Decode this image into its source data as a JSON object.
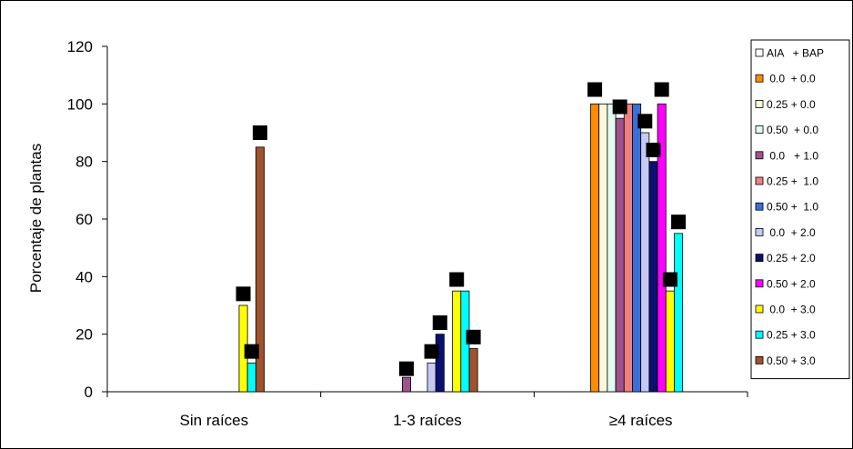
{
  "chart_data": {
    "type": "bar",
    "title": "",
    "xlabel": "",
    "ylabel": "Porcentaje de plantas",
    "ylim": [
      0,
      120
    ],
    "yticks": [
      "0",
      "20",
      "40",
      "60",
      "80",
      "100",
      "120"
    ],
    "categories": [
      "Sin raíces",
      "1-3 raíces",
      "≥4 raíces"
    ],
    "legend_header": "AIA   + BAP",
    "legend_position": "right",
    "series": [
      {
        "name": " 0.0  + 0.0",
        "color": "#ff8c00",
        "values": [
          0,
          0,
          100
        ]
      },
      {
        "name": "0.25 + 0.0",
        "color": "#f8f8dc",
        "values": [
          0,
          0,
          100
        ]
      },
      {
        "name": "0.50  + 0.0",
        "color": "#e2fbee",
        "values": [
          0,
          0,
          100
        ]
      },
      {
        "name": " 0.0   + 1.0",
        "color": "#a0528f",
        "values": [
          0,
          5,
          95
        ]
      },
      {
        "name": "0.25 +  1.0",
        "color": "#f08080",
        "values": [
          0,
          0,
          100
        ]
      },
      {
        "name": "0.50 +  1.0",
        "color": "#3a6fd8",
        "values": [
          0,
          0,
          100
        ]
      },
      {
        "name": " 0.0  + 2.0",
        "color": "#c8c8f4",
        "values": [
          0,
          10,
          90
        ]
      },
      {
        "name": "0.25 + 2.0",
        "color": "#0a1070",
        "values": [
          0,
          20,
          80
        ]
      },
      {
        "name": "0.50 + 2.0",
        "color": "#ff00ff",
        "values": [
          0,
          0,
          100
        ]
      },
      {
        "name": " 0.0  + 3.0",
        "color": "#ffff00",
        "values": [
          30,
          35,
          35
        ]
      },
      {
        "name": "0.25 + 3.0",
        "color": "#00ffff",
        "values": [
          10,
          35,
          55
        ]
      },
      {
        "name": "0.50 + 3.0",
        "color": "#a0522d",
        "values": [
          85,
          15,
          0
        ]
      }
    ],
    "error_markers": [
      {
        "category": 0,
        "series": 9,
        "value": 34
      },
      {
        "category": 0,
        "series": 10,
        "value": 14
      },
      {
        "category": 0,
        "series": 11,
        "value": 90
      },
      {
        "category": 1,
        "series": 3,
        "value": 8
      },
      {
        "category": 1,
        "series": 6,
        "value": 14
      },
      {
        "category": 1,
        "series": 7,
        "value": 24
      },
      {
        "category": 1,
        "series": 9,
        "value": 39
      },
      {
        "category": 1,
        "series": 11,
        "value": 19
      },
      {
        "category": 2,
        "series": 0,
        "value": 105
      },
      {
        "category": 2,
        "series": 3,
        "value": 99
      },
      {
        "category": 2,
        "series": 6,
        "value": 94
      },
      {
        "category": 2,
        "series": 7,
        "value": 84
      },
      {
        "category": 2,
        "series": 8,
        "value": 105
      },
      {
        "category": 2,
        "series": 9,
        "value": 39
      },
      {
        "category": 2,
        "series": 10,
        "value": 59
      }
    ]
  }
}
